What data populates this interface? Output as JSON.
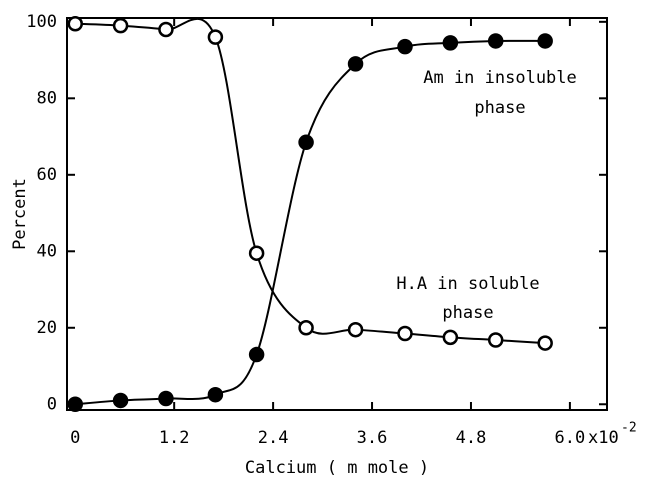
{
  "chart_data": {
    "type": "scatter",
    "x_label": "Calcium ( m mole )",
    "y_label": "Percent",
    "x_multiplier": "x10",
    "x_exponent": "-2",
    "xlim": [
      -0.1,
      6.45
    ],
    "xticks": [
      0,
      1.2,
      2.4,
      3.6,
      4.8,
      {
        "value": 6,
        "label": "6.0"
      }
    ],
    "ylim": [
      -1.5,
      101
    ],
    "yticks": [
      0,
      20,
      40,
      60,
      80,
      100
    ],
    "series": [
      {
        "label_lines": [
          "Am in insoluble",
          "phase"
        ],
        "marker": "filled",
        "color": "#000000",
        "x": [
          0,
          0.55,
          1.1,
          1.7,
          2.2,
          2.8,
          3.4,
          4.0,
          4.55,
          5.1,
          5.7
        ],
        "values": [
          0,
          1,
          1.5,
          2.5,
          13,
          68.5,
          89,
          93.5,
          94.5,
          95,
          95
        ]
      },
      {
        "label_lines": [
          "H.A in soluble",
          "phase"
        ],
        "marker": "open",
        "color": "#000000",
        "x": [
          0,
          0.55,
          1.1,
          1.7,
          2.2,
          2.8,
          3.4,
          4.0,
          4.55,
          5.1,
          5.7
        ],
        "values": [
          99.5,
          99,
          98,
          96,
          39.5,
          20,
          19.5,
          18.5,
          17.5,
          16.8,
          16
        ]
      }
    ]
  }
}
